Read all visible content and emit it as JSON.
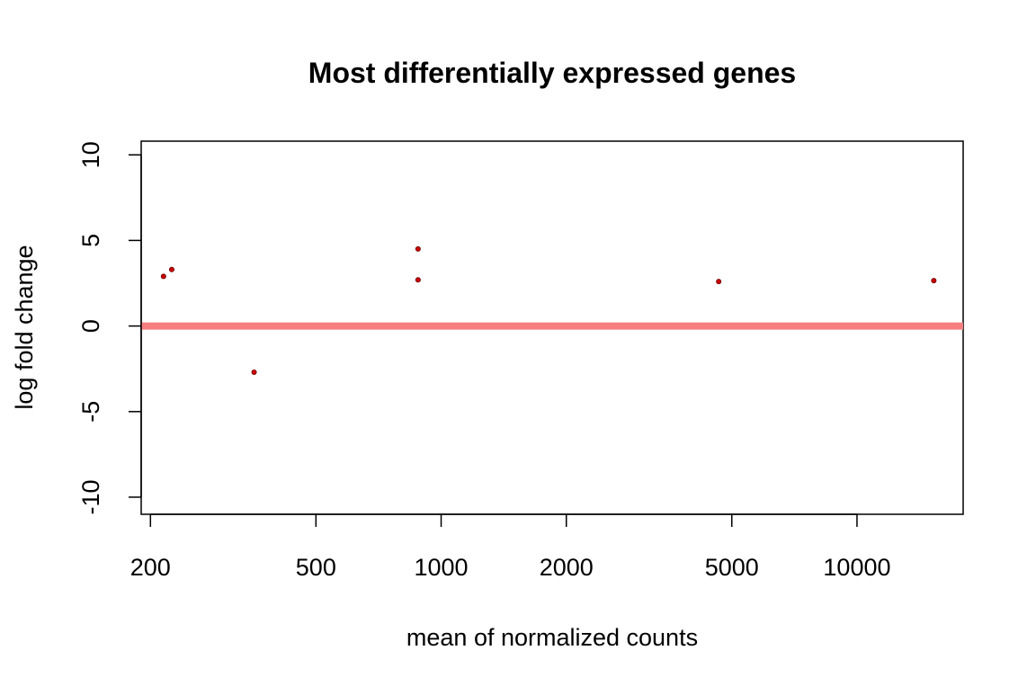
{
  "chart_data": {
    "type": "scatter",
    "title": "Most differentially expressed genes",
    "xlabel": "mean of normalized counts",
    "ylabel": "log fold change",
    "x_scale": "log",
    "xlim": [
      190,
      18000
    ],
    "ylim": [
      -11,
      10.8
    ],
    "x_ticks": [
      200,
      500,
      1000,
      2000,
      5000,
      10000
    ],
    "x_tick_labels": [
      "200",
      "500",
      "1000",
      "2000",
      "5000",
      "10000"
    ],
    "y_ticks": [
      10,
      5,
      0,
      -5,
      -10
    ],
    "y_tick_labels": [
      "10",
      "5",
      "0",
      "-5",
      "-10"
    ],
    "grid": false,
    "reference_line": {
      "y": 0,
      "color": "#f77f7f"
    },
    "point_color": "#cc0000",
    "points": [
      {
        "x": 215,
        "y": 2.9
      },
      {
        "x": 225,
        "y": 3.3
      },
      {
        "x": 355,
        "y": -2.7
      },
      {
        "x": 880,
        "y": 4.5
      },
      {
        "x": 880,
        "y": 2.7
      },
      {
        "x": 4650,
        "y": 2.6
      },
      {
        "x": 15300,
        "y": 2.65
      }
    ]
  }
}
